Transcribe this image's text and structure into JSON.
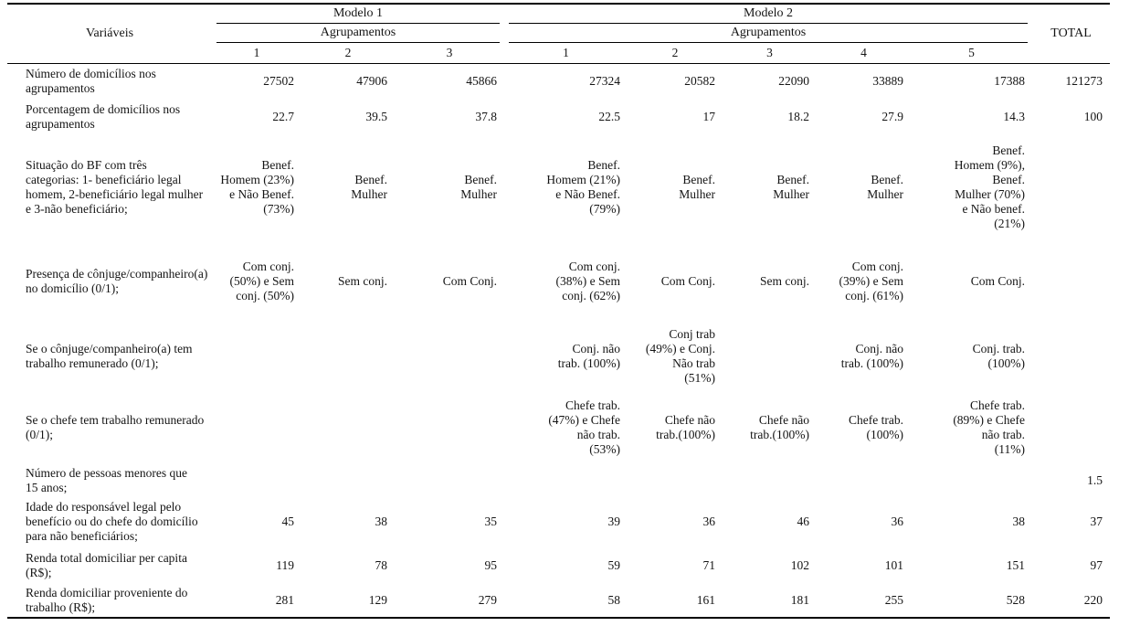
{
  "table": {
    "variables_header": "Variáveis",
    "total_header": "TOTAL",
    "groups": [
      {
        "name": "Modelo 1",
        "subheader": "Agrupamentos",
        "columns": [
          "1",
          "2",
          "3"
        ]
      },
      {
        "name": "Modelo 2",
        "subheader": "Agrupamentos",
        "columns": [
          "1",
          "2",
          "3",
          "4",
          "5"
        ]
      }
    ],
    "rows": [
      {
        "label": "Número de domicílios nos\nagrupamentos",
        "cells": [
          "27502",
          "47906",
          "45866",
          "27324",
          "20582",
          "22090",
          "33889",
          "17388"
        ],
        "total": "121273"
      },
      {
        "label": "Porcentagem de domicílios nos\nagrupamentos",
        "cells": [
          "22.7",
          "39.5",
          "37.8",
          "22.5",
          "17",
          "18.2",
          "27.9",
          "14.3"
        ],
        "total": "100"
      },
      {
        "label": "Situação do BF com três\ncategorias: 1- beneficiário legal\nhomem, 2-beneficiário legal mulher\ne 3-não beneficiário;",
        "cells": [
          "Benef.\nHomem (23%)\ne Não Benef.\n(73%)",
          "Benef.\nMulher",
          "Benef.\nMulher",
          "Benef.\nHomem (21%)\ne Não Benef.\n(79%)",
          "Benef.\nMulher",
          "Benef.\nMulher",
          "Benef.\nMulher",
          "Benef.\nHomem (9%),\nBenef.\nMulher (70%)\ne Não benef.\n(21%)"
        ],
        "total": ""
      },
      {
        "label": "Presença de cônjuge/companheiro(a)\nno domicílio (0/1);",
        "cells": [
          "Com conj.\n(50%) e Sem\nconj. (50%)",
          "Sem conj.",
          "Com Conj.",
          "Com conj.\n(38%) e Sem\nconj. (62%)",
          "Com Conj.",
          "Sem conj.",
          "Com conj.\n(39%) e Sem\nconj. (61%)",
          "Com Conj."
        ],
        "total": ""
      },
      {
        "label": "Se o cônjuge/companheiro(a) tem\ntrabalho remunerado (0/1);",
        "cells": [
          "",
          "",
          "",
          "Conj. não\ntrab. (100%)",
          "Conj trab\n(49%) e Conj.\nNão trab\n(51%)",
          "",
          "Conj. não\ntrab. (100%)",
          "Conj. trab.\n(100%)"
        ],
        "total": ""
      },
      {
        "label": "Se o chefe tem trabalho remunerado\n(0/1);",
        "cells": [
          "",
          "",
          "",
          "Chefe trab.\n(47%) e Chefe\nnão trab.\n(53%)",
          "Chefe não\ntrab.(100%)",
          "Chefe não\ntrab.(100%)",
          "Chefe trab.\n(100%)",
          "Chefe trab.\n(89%) e Chefe\nnão trab.\n(11%)"
        ],
        "total": ""
      },
      {
        "label": "Número de pessoas menores que\n15 anos;",
        "cells": [
          "",
          "",
          "",
          "",
          "",
          "",
          "",
          ""
        ],
        "total": "1.5"
      },
      {
        "label": "Idade do responsável legal pelo\nbenefício ou do chefe do domicílio\npara não beneficiários;",
        "cells": [
          "45",
          "38",
          "35",
          "39",
          "36",
          "46",
          "36",
          "38"
        ],
        "total": "37"
      },
      {
        "label": "Renda total domiciliar per capita\n(R$);",
        "cells": [
          "119",
          "78",
          "95",
          "59",
          "71",
          "102",
          "101",
          "151"
        ],
        "total": "97"
      },
      {
        "label": "Renda domiciliar proveniente do\ntrabalho (R$);",
        "cells": [
          "281",
          "129",
          "279",
          "58",
          "161",
          "181",
          "255",
          "528"
        ],
        "total": "220"
      }
    ]
  }
}
